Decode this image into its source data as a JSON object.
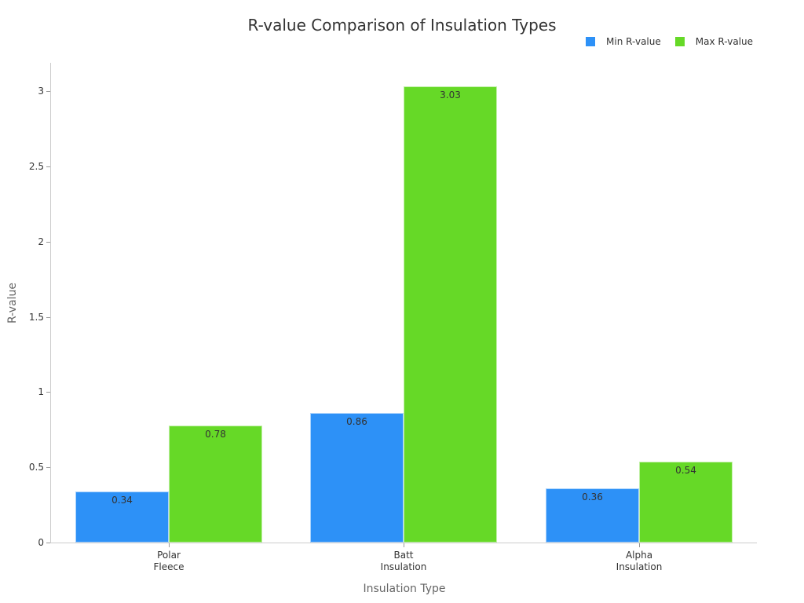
{
  "chart_data": {
    "type": "bar",
    "title": "R-value Comparison of Insulation Types",
    "xlabel": "Insulation Type",
    "ylabel": "R-value",
    "categories": [
      "Polar\nFleece",
      "Batt\nInsulation",
      "Alpha\nInsulation"
    ],
    "category_lines": [
      [
        "Polar",
        "Fleece"
      ],
      [
        "Batt",
        "Insulation"
      ],
      [
        "Alpha",
        "Insulation"
      ]
    ],
    "series": [
      {
        "name": "Min R-value",
        "color": "#2d91f7",
        "values": [
          0.34,
          0.86,
          0.36
        ],
        "labels": [
          "0.34",
          "0.86",
          "0.36"
        ]
      },
      {
        "name": "Max R-value",
        "color": "#66d927",
        "values": [
          0.78,
          3.03,
          0.54
        ],
        "labels": [
          "0.78",
          "3.03",
          "0.54"
        ]
      }
    ],
    "ylim": [
      0,
      3.19
    ],
    "yticks": [
      "0",
      "0.5",
      "1",
      "1.5",
      "2",
      "2.5",
      "3"
    ],
    "ytick_values": [
      0,
      0.5,
      1,
      1.5,
      2,
      2.5,
      3
    ],
    "grid": false,
    "legend_position": "top-right"
  }
}
